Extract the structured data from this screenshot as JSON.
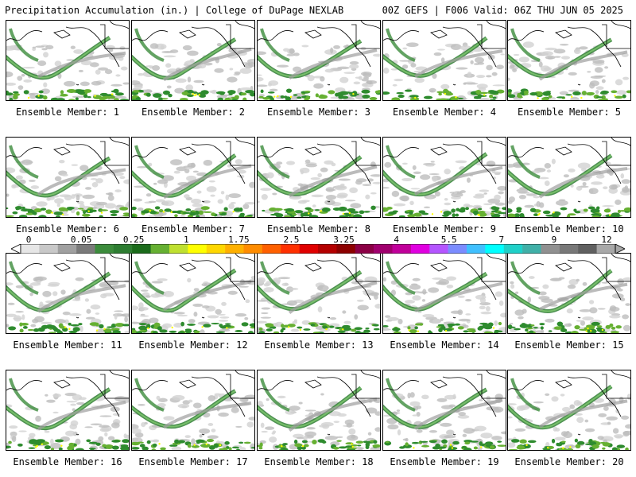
{
  "header": {
    "left_title": "Precipitation Accumulation (in.) | College of DuPage NEXLAB",
    "right_title": "00Z GEFS | F006 Valid: 06Z THU JUN 05 2025"
  },
  "panels": [
    {
      "label": "Ensemble Member: 1"
    },
    {
      "label": "Ensemble Member: 2"
    },
    {
      "label": "Ensemble Member: 3"
    },
    {
      "label": "Ensemble Member: 4"
    },
    {
      "label": "Ensemble Member: 5"
    },
    {
      "label": "Ensemble Member: 6"
    },
    {
      "label": "Ensemble Member: 7"
    },
    {
      "label": "Ensemble Member: 8"
    },
    {
      "label": "Ensemble Member: 9"
    },
    {
      "label": "Ensemble Member: 10"
    },
    {
      "label": "Ensemble Member: 11"
    },
    {
      "label": "Ensemble Member: 12"
    },
    {
      "label": "Ensemble Member: 13"
    },
    {
      "label": "Ensemble Member: 14"
    },
    {
      "label": "Ensemble Member: 15"
    },
    {
      "label": "Ensemble Member: 16"
    },
    {
      "label": "Ensemble Member: 17"
    },
    {
      "label": "Ensemble Member: 18"
    },
    {
      "label": "Ensemble Member: 19"
    },
    {
      "label": "Ensemble Member: 20"
    }
  ],
  "colorbar": {
    "tick_labels": [
      "0",
      "0.05",
      "0.25",
      "1",
      "1.75",
      "2.5",
      "3.25",
      "4",
      "5.5",
      "7",
      "9",
      "12"
    ],
    "colors": [
      "#e6e6e6",
      "#c8c8c8",
      "#a0a0a0",
      "#7a7a7a",
      "#3c8c3c",
      "#2e7d32",
      "#1b6b1b",
      "#66b032",
      "#bfe030",
      "#ffff00",
      "#ffd700",
      "#ffb000",
      "#ff8c00",
      "#ff6000",
      "#ff3000",
      "#e00000",
      "#b40000",
      "#8c0000",
      "#8b0045",
      "#a0006e",
      "#c0009a",
      "#e000e0",
      "#b455ff",
      "#7b8cff",
      "#40c0ff",
      "#00ffff",
      "#20d0c8",
      "#40b0a8",
      "#909090",
      "#787878",
      "#606060",
      "#a8a8a8"
    ],
    "colors_meaning": "precipitation color scale from light gray (trace) through greens, yellow, oranges, reds, magentas, blues, cyans to grays"
  }
}
